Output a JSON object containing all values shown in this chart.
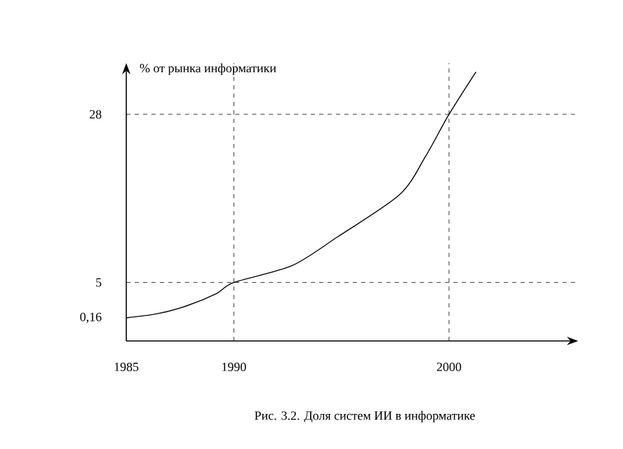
{
  "chart_data": {
    "type": "line",
    "ylabel": "% от рынка информатики",
    "annotations": [
      "Рис. 3.2. Доля систем ИИ в информатике"
    ],
    "x": [
      1985,
      1986.4,
      1987.8,
      1989.2,
      1990,
      1992.7,
      1994.8,
      1997.7,
      1998.9,
      2000,
      2001.25
    ],
    "series": [
      {
        "color": "#000000",
        "values": [
          0.16,
          0.7,
          1.8,
          3.5,
          5,
          7.3,
          11.2,
          17,
          22.2,
          28,
          33.8
        ]
      }
    ],
    "xlim": [
      1985,
      2006
    ],
    "ylim": [
      -3,
      35
    ],
    "xticks": [
      1985,
      1990,
      2000
    ],
    "yticks": [
      {
        "value": 0.16,
        "label": "0,16"
      },
      5,
      28
    ],
    "marker": "none",
    "line_style": "solid",
    "ref_lines": [
      {
        "axis": "x",
        "value": 1990,
        "line_style": "dashed",
        "color": "#000000"
      },
      {
        "axis": "x",
        "value": 2000,
        "line_style": "dashed",
        "color": "#000000"
      },
      {
        "axis": "y",
        "value": 5,
        "line_style": "dashed",
        "color": "#000000"
      },
      {
        "axis": "y",
        "value": 28,
        "line_style": "dashed",
        "color": "#000000"
      }
    ]
  }
}
